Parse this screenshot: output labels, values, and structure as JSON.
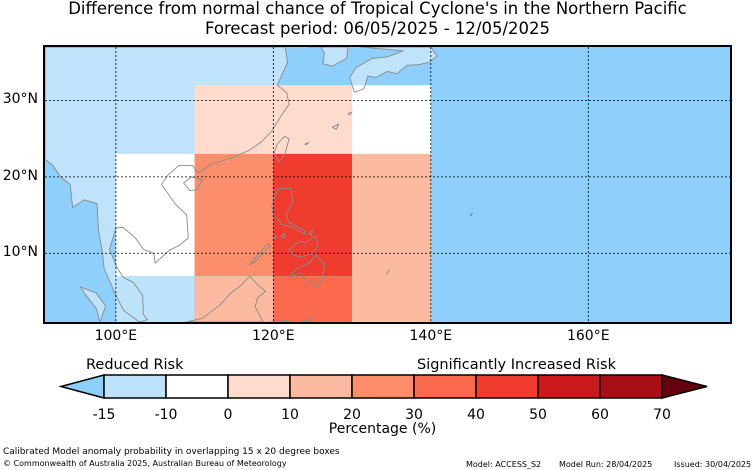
{
  "title": {
    "line1": "Difference from normal chance of Tropical Cyclone's in the Northern Pacific",
    "line2": "Forecast period: 06/05/2025 - 12/05/2025"
  },
  "map": {
    "region": "Northern Pacific",
    "lon_range": [
      91,
      178
    ],
    "lat_range": [
      1,
      37
    ],
    "ocean_color": "#8ed0fb",
    "land_color": "#bfe3fb",
    "coastline_color": "#888888",
    "grid_style": "dotted",
    "lon_ticks": [
      "100°E",
      "120°E",
      "140°E",
      "160°E"
    ],
    "lat_ticks": [
      "30°N",
      "20°N",
      "10°N"
    ],
    "cells": [
      {
        "lon": [
          100,
          110
        ],
        "lat": [
          7,
          23
        ],
        "range": "-10 to 0",
        "color": "#ffffff"
      },
      {
        "lon": [
          100,
          110
        ],
        "lat": [
          1,
          7
        ],
        "range": "-15 to -10",
        "color": "#bde3fb"
      },
      {
        "lon": [
          110,
          130
        ],
        "lat": [
          23,
          32
        ],
        "range": "0 to 10",
        "color": "#fddccd"
      },
      {
        "lon": [
          110,
          120
        ],
        "lat": [
          7,
          23
        ],
        "range": "20 to 30",
        "color": "#fc8e6c"
      },
      {
        "lon": [
          110,
          120
        ],
        "lat": [
          1,
          7
        ],
        "range": "10 to 20",
        "color": "#fcbba0"
      },
      {
        "lon": [
          120,
          130
        ],
        "lat": [
          7,
          23
        ],
        "range": "40 to 50",
        "color": "#ef3c2f"
      },
      {
        "lon": [
          120,
          130
        ],
        "lat": [
          1,
          7
        ],
        "range": "30 to 40",
        "color": "#fb6a4c"
      },
      {
        "lon": [
          130,
          140
        ],
        "lat": [
          23,
          32
        ],
        "range": "-10 to 0",
        "color": "#ffffff"
      },
      {
        "lon": [
          130,
          140
        ],
        "lat": [
          1,
          23
        ],
        "range": "10 to 20",
        "color": "#fcbba0"
      }
    ]
  },
  "colorbar": {
    "left_label": "Reduced Risk",
    "right_label": "Significantly Increased Risk",
    "axis_label": "Percentage (%)",
    "ticks": [
      "-15",
      "-10",
      "0",
      "10",
      "20",
      "30",
      "40",
      "50",
      "60",
      "70"
    ],
    "under_color": "#8ed0fb",
    "over_color": "#67000d",
    "colors": [
      "#bde3fb",
      "#ffffff",
      "#fddccd",
      "#fcbba0",
      "#fc8e6c",
      "#fb6a4c",
      "#ef3c2f",
      "#cb181d",
      "#a50f15"
    ]
  },
  "footer": {
    "line1": "Calibrated Model anomaly probability in overlapping 15 x 20 degree boxes",
    "line2": "© Commonwealth of Australia 2025, Australian Bureau of Meteorology",
    "model": "Model: ACCESS_S2",
    "model_run": "Model Run: 28/04/2025",
    "issued": "Issued: 30/04/2025"
  }
}
